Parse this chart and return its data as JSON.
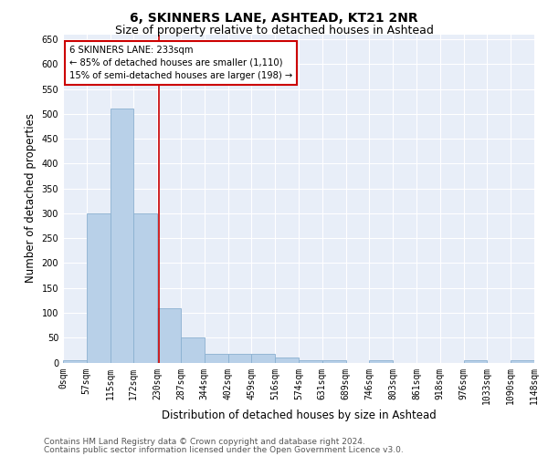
{
  "title": "6, SKINNERS LANE, ASHTEAD, KT21 2NR",
  "subtitle": "Size of property relative to detached houses in Ashtead",
  "xlabel": "Distribution of detached houses by size in Ashtead",
  "ylabel": "Number of detached properties",
  "bar_edges": [
    0,
    57,
    115,
    172,
    230,
    287,
    344,
    402,
    459,
    516,
    574,
    631,
    689,
    746,
    803,
    861,
    918,
    976,
    1033,
    1090,
    1148
  ],
  "bar_values": [
    5,
    300,
    510,
    300,
    110,
    50,
    18,
    18,
    18,
    10,
    5,
    5,
    0,
    5,
    0,
    0,
    0,
    5,
    0,
    5
  ],
  "bar_color": "#b8d0e8",
  "bar_edge_color": "#8ab0d0",
  "property_line_x": 233,
  "property_line_color": "#cc0000",
  "annotation_text": "6 SKINNERS LANE: 233sqm\n← 85% of detached houses are smaller (1,110)\n15% of semi-detached houses are larger (198) →",
  "annotation_box_color": "#cc0000",
  "ylim": [
    0,
    660
  ],
  "yticks": [
    0,
    50,
    100,
    150,
    200,
    250,
    300,
    350,
    400,
    450,
    500,
    550,
    600,
    650
  ],
  "background_color": "#e8eef8",
  "grid_color": "#ffffff",
  "footer_line1": "Contains HM Land Registry data © Crown copyright and database right 2024.",
  "footer_line2": "Contains public sector information licensed under the Open Government Licence v3.0.",
  "title_fontsize": 10,
  "subtitle_fontsize": 9,
  "axis_label_fontsize": 8.5,
  "tick_fontsize": 7,
  "footer_fontsize": 6.5
}
